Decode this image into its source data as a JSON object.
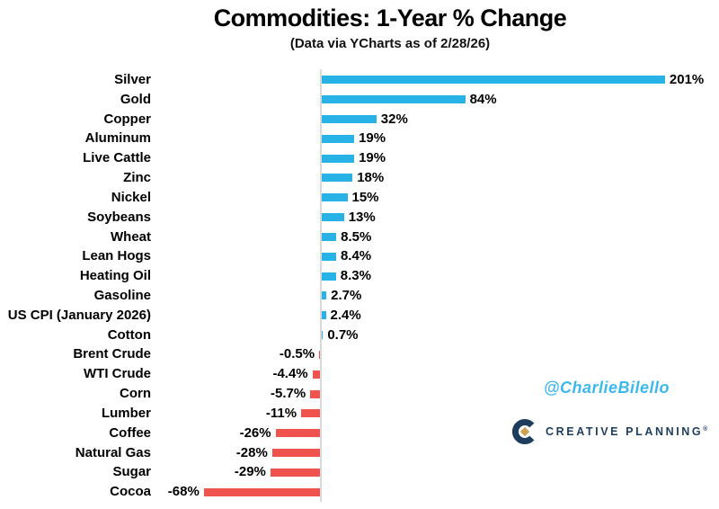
{
  "header": {
    "title": "Commodities: 1-Year % Change",
    "subtitle": "(Data via YCharts as of 2/28/26)"
  },
  "watermark": "@CharlieBilello",
  "logo": {
    "brand": "CREATIVE PLANNING",
    "trademark": "®",
    "mark_icon": "creative-planning-c-mark",
    "navy": "#1d3d5f",
    "gold": "#c9a254"
  },
  "chart_data": {
    "type": "bar",
    "orientation": "horizontal",
    "title": "Commodities: 1-Year % Change",
    "subtitle": "(Data via YCharts as of 2/28/26)",
    "xlabel": "",
    "ylabel": "",
    "grid": false,
    "legend": false,
    "zero_line": true,
    "categories": [
      "Silver",
      "Gold",
      "Copper",
      "Aluminum",
      "Live Cattle",
      "Zinc",
      "Nickel",
      "Soybeans",
      "Wheat",
      "Lean Hogs",
      "Heating Oil",
      "Gasoline",
      "US CPI (January 2026)",
      "Cotton",
      "Brent Crude",
      "WTI Crude",
      "Corn",
      "Lumber",
      "Coffee",
      "Natural Gas",
      "Sugar",
      "Cocoa"
    ],
    "values": [
      201,
      84,
      32,
      19,
      19,
      18,
      15,
      13,
      8.5,
      8.4,
      8.3,
      2.7,
      2.4,
      0.7,
      -0.5,
      -4.4,
      -5.7,
      -11,
      -26,
      -28,
      -29,
      -68
    ],
    "value_labels": [
      "201%",
      "84%",
      "32%",
      "19%",
      "19%",
      "18%",
      "15%",
      "13%",
      "8.5%",
      "8.4%",
      "8.3%",
      "2.7%",
      "2.4%",
      "0.7%",
      "-0.5%",
      "-4.4%",
      "-5.7%",
      "-11%",
      "-26%",
      "-28%",
      "-29%",
      "-68%"
    ],
    "colors": {
      "positive": "#29b2e5",
      "negative": "#f0534d",
      "axis": "#d9d9d9",
      "text": "#000000"
    }
  }
}
